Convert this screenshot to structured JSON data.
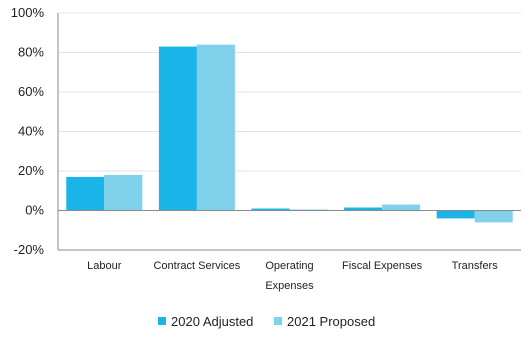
{
  "chart_data": {
    "type": "bar",
    "categories": [
      "Labour",
      "Contract Services",
      "Operating Expenses",
      "Fiscal Expenses",
      "Transfers"
    ],
    "category_lines": [
      [
        "Labour"
      ],
      [
        "Contract Services"
      ],
      [
        "Operating",
        "Expenses"
      ],
      [
        "Fiscal Expenses"
      ],
      [
        "Transfers"
      ]
    ],
    "series": [
      {
        "name": "2020 Adjusted",
        "values": [
          17,
          83,
          1,
          1.5,
          -4
        ],
        "color": "#1ab4e8"
      },
      {
        "name": "2021 Proposed",
        "values": [
          18,
          84,
          0.5,
          3,
          -6
        ],
        "color": "#7fd0ea"
      }
    ],
    "yticks": [
      -20,
      0,
      20,
      40,
      60,
      80,
      100
    ],
    "ytick_labels": [
      "-20%",
      "0%",
      "20%",
      "40%",
      "60%",
      "80%",
      "100%"
    ],
    "ylim": [
      -20,
      100
    ],
    "grid": true,
    "legend_position": "bottom"
  }
}
